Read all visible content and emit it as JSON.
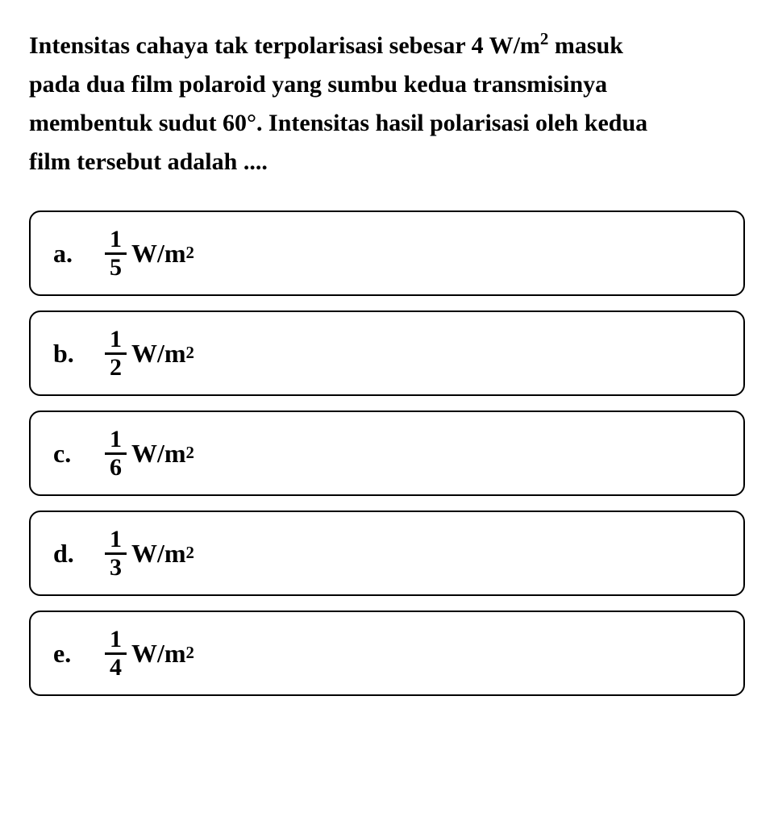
{
  "question": {
    "line1_prefix": "Intensitas cahaya tak terpolarisasi sebesar 4 W/m",
    "line1_sup": "2",
    "line1_suffix": " masuk",
    "line2": "pada dua film polaroid yang sumbu kedua transmisinya",
    "line3": "membentuk sudut 60°. Intensitas hasil polarisasi oleh kedua",
    "line4": "film tersebut adalah ...."
  },
  "options": [
    {
      "letter": "a.",
      "numerator": "1",
      "denominator": "5",
      "unit_base": "W/m",
      "unit_sup": "2"
    },
    {
      "letter": "b.",
      "numerator": "1",
      "denominator": "2",
      "unit_base": "W/m",
      "unit_sup": "2"
    },
    {
      "letter": "c.",
      "numerator": "1",
      "denominator": "6",
      "unit_base": "W/m",
      "unit_sup": "2"
    },
    {
      "letter": "d.",
      "numerator": "1",
      "denominator": "3",
      "unit_base": "W/m",
      "unit_sup": "2"
    },
    {
      "letter": "e.",
      "numerator": "1",
      "denominator": "4",
      "unit_base": "W/m",
      "unit_sup": "2"
    }
  ],
  "style": {
    "background_color": "#ffffff",
    "text_color": "#000000",
    "border_color": "#000000",
    "border_radius": 14,
    "question_fontsize": 30,
    "option_fontsize": 32,
    "font_weight": "bold"
  }
}
